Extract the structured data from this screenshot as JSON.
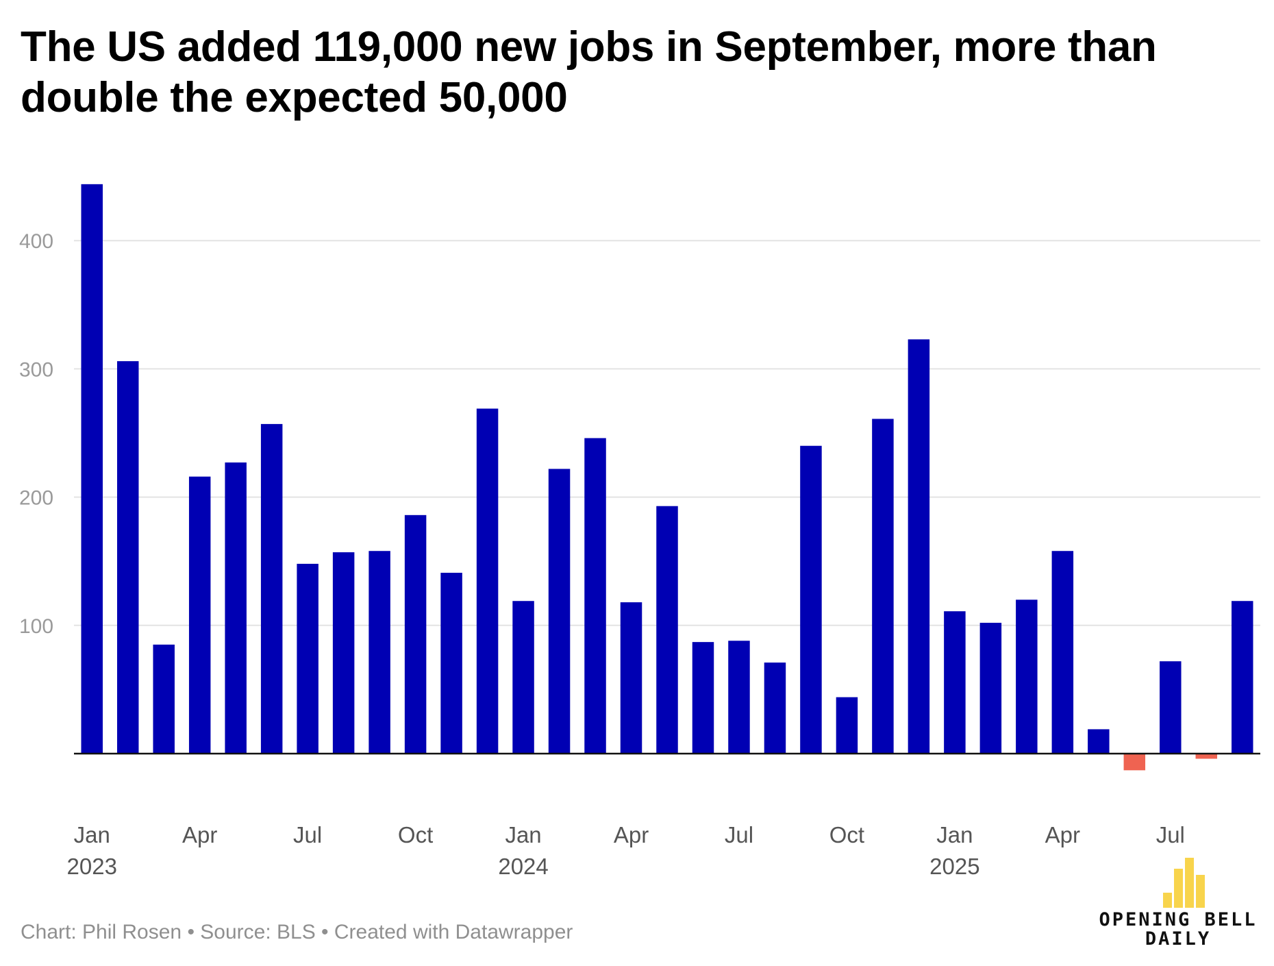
{
  "chart_data": {
    "type": "bar",
    "title": "The US added 119,000 new jobs in September, more than double the expected 50,000",
    "xlabel": "",
    "ylabel": "",
    "ylim": [
      -20,
      450
    ],
    "yticks": [
      100,
      200,
      300,
      400
    ],
    "grid": true,
    "positive_color": "#0000b3",
    "negative_color": "#ef6351",
    "categories": [
      "Jan 2023",
      "Feb 2023",
      "Mar 2023",
      "Apr 2023",
      "May 2023",
      "Jun 2023",
      "Jul 2023",
      "Aug 2023",
      "Sep 2023",
      "Oct 2023",
      "Nov 2023",
      "Dec 2023",
      "Jan 2024",
      "Feb 2024",
      "Mar 2024",
      "Apr 2024",
      "May 2024",
      "Jun 2024",
      "Jul 2024",
      "Aug 2024",
      "Sep 2024",
      "Oct 2024",
      "Nov 2024",
      "Dec 2024",
      "Jan 2025",
      "Feb 2025",
      "Mar 2025",
      "Apr 2025",
      "May 2025",
      "Jun 2025",
      "Jul 2025",
      "Aug 2025",
      "Sep 2025"
    ],
    "values": [
      444,
      306,
      85,
      216,
      227,
      257,
      148,
      157,
      158,
      186,
      141,
      269,
      119,
      222,
      246,
      118,
      193,
      87,
      88,
      71,
      240,
      44,
      261,
      323,
      111,
      102,
      120,
      158,
      19,
      -13,
      72,
      -4,
      119
    ],
    "x_tick_labels": [
      {
        "index": 0,
        "month": "Jan",
        "year": "2023"
      },
      {
        "index": 3,
        "month": "Apr",
        "year": ""
      },
      {
        "index": 6,
        "month": "Jul",
        "year": ""
      },
      {
        "index": 9,
        "month": "Oct",
        "year": ""
      },
      {
        "index": 12,
        "month": "Jan",
        "year": "2024"
      },
      {
        "index": 15,
        "month": "Apr",
        "year": ""
      },
      {
        "index": 18,
        "month": "Jul",
        "year": ""
      },
      {
        "index": 21,
        "month": "Oct",
        "year": ""
      },
      {
        "index": 24,
        "month": "Jan",
        "year": "2025"
      },
      {
        "index": 27,
        "month": "Apr",
        "year": ""
      },
      {
        "index": 30,
        "month": "Jul",
        "year": ""
      }
    ]
  },
  "footer": "Chart: Phil Rosen • Source: BLS • Created with Datawrapper",
  "logo": {
    "line1": "OPENING BELL",
    "line2": "DAILY",
    "color": "#f8d44c"
  }
}
